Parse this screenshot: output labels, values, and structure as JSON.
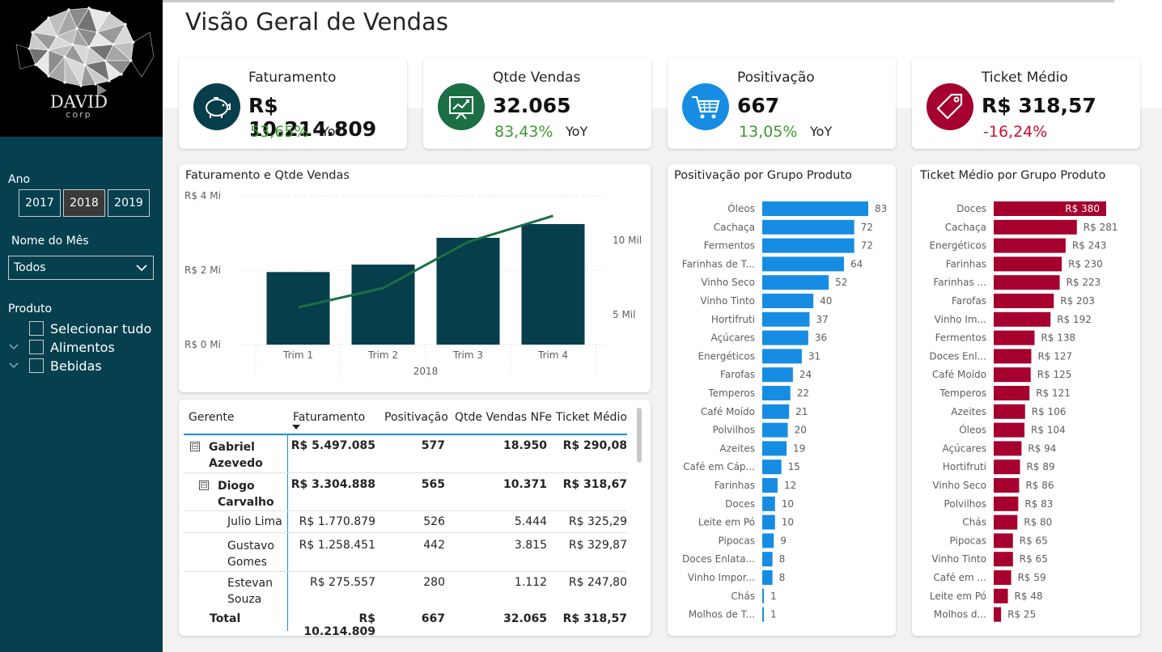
{
  "title": "Visão Geral de Vendas",
  "logo": {
    "main": "DAVID",
    "sub": "corp"
  },
  "filters": {
    "ano_label": "Ano",
    "years": [
      "2017",
      "2018",
      "2019"
    ],
    "selected_year": "2018",
    "mes_label": "Nome do Mês",
    "mes_value": "Todos",
    "produto_label": "Produto",
    "produto_items": [
      "Selecionar tudo",
      "Alimentos",
      "Bebidas"
    ]
  },
  "kpis": [
    {
      "title": "Faturamento",
      "value": "R$ 10.214.809",
      "pct": "53,65%",
      "yoy": "YoY",
      "color": "#063e4b",
      "icon": "piggy-bank-icon"
    },
    {
      "title": "Qtde Vendas",
      "value": "32.065",
      "pct": "83,43%",
      "yoy": "YoY",
      "color": "#1b6e45",
      "icon": "growth-chart-icon"
    },
    {
      "title": "Positivação",
      "value": "667",
      "pct": "13,05%",
      "yoy": "YoY",
      "color": "#168de2",
      "icon": "cart-icon"
    },
    {
      "title": "Ticket Médio",
      "value": "R$ 318,57",
      "pct": "-16,24%",
      "yoy": "",
      "color": "#a5002e",
      "icon": "price-tag-icon"
    }
  ],
  "chart_data": [
    {
      "type": "bar",
      "title": "Faturamento e Qtde Vendas",
      "categories": [
        "Trim 1",
        "Trim 2",
        "Trim 3",
        "Trim 4"
      ],
      "xlabel": "2018",
      "left_axis": {
        "ticks": [
          "R$ 0 Mi",
          "R$ 2 Mi",
          "R$ 4 Mi"
        ],
        "range": [
          0,
          4000000
        ]
      },
      "right_axis": {
        "ticks": [
          "5 Mil",
          "10 Mil"
        ],
        "range": [
          3000,
          13000
        ]
      },
      "series": [
        {
          "type": "bar",
          "values": [
            1950000,
            2150000,
            2870000,
            3240000
          ],
          "color": "#063e4b"
        },
        {
          "type": "line",
          "values": [
            5500,
            6800,
            9900,
            11650
          ],
          "color": "#1b6e45"
        }
      ],
      "grid": true
    },
    {
      "type": "bar",
      "orientation": "horizontal",
      "title": "Positivação por Grupo Produto",
      "color": "#168de2",
      "categories": [
        "Óleos",
        "Cachaça",
        "Fermentos",
        "Farinhas de T...",
        "Vinho Seco",
        "Vinho Tinto",
        "Hortifruti",
        "Açúcares",
        "Energéticos",
        "Farofas",
        "Temperos",
        "Café Moído",
        "Polvilhos",
        "Azeites",
        "Café em Cáp...",
        "Farinhas",
        "Doces",
        "Leite em Pó",
        "Pipocas",
        "Doces Enlata...",
        "Vinho Impor...",
        "Chás",
        "Molhos de T..."
      ],
      "values": [
        83,
        72,
        72,
        64,
        52,
        40,
        37,
        36,
        31,
        24,
        22,
        21,
        20,
        19,
        15,
        12,
        10,
        10,
        9,
        8,
        8,
        1,
        1
      ],
      "labels": [
        "83",
        "72",
        "72",
        "64",
        "52",
        "40",
        "37",
        "36",
        "31",
        "24",
        "22",
        "21",
        "20",
        "19",
        "15",
        "12",
        "10",
        "10",
        "9",
        "8",
        "8",
        "1",
        "1"
      ]
    },
    {
      "type": "bar",
      "orientation": "horizontal",
      "title": "Ticket Médio por Grupo Produto",
      "color": "#a5002e",
      "categories": [
        "Doces",
        "Cachaça",
        "Energéticos",
        "Farinhas",
        "Farinhas ...",
        "Farofas",
        "Vinho Im...",
        "Fermentos",
        "Doces Enl...",
        "Café Moído",
        "Temperos",
        "Azeites",
        "Óleos",
        "Açúcares",
        "Hortifruti",
        "Vinho Seco",
        "Polvilhos",
        "Chás",
        "Pipocas",
        "Vinho Tinto",
        "Café em ...",
        "Leite em Pó",
        "Molhos d..."
      ],
      "values": [
        380,
        281,
        243,
        230,
        223,
        203,
        192,
        138,
        127,
        125,
        121,
        106,
        104,
        94,
        89,
        86,
        83,
        80,
        65,
        65,
        59,
        48,
        25
      ],
      "labels": [
        "R$ 380",
        "R$ 281",
        "R$ 243",
        "R$ 230",
        "R$ 223",
        "R$ 203",
        "R$ 192",
        "R$ 138",
        "R$ 127",
        "R$ 125",
        "R$ 121",
        "R$ 106",
        "R$ 104",
        "R$ 94",
        "R$ 89",
        "R$ 86",
        "R$ 83",
        "R$ 80",
        "R$ 65",
        "R$ 65",
        "R$ 59",
        "R$ 48",
        "R$ 25"
      ]
    }
  ],
  "table": {
    "headers": [
      "Gerente",
      "Faturamento",
      "Positivação",
      "Qtde Vendas NFe",
      "Ticket Médio"
    ],
    "rows": [
      {
        "name": "Gabriel Azevedo",
        "level": 0,
        "bold": true,
        "expand": "⊟",
        "fat": "R$ 5.497.085",
        "pos": "577",
        "qtde": "18.950",
        "ticket": "R$ 290,08"
      },
      {
        "name": "Diogo Carvalho",
        "level": 1,
        "bold": true,
        "expand": "⊟",
        "fat": "R$ 3.304.888",
        "pos": "565",
        "qtde": "10.371",
        "ticket": "R$ 318,67"
      },
      {
        "name": "Julio Lima",
        "level": 2,
        "bold": false,
        "expand": "",
        "fat": "R$ 1.770.879",
        "pos": "526",
        "qtde": "5.444",
        "ticket": "R$ 325,29"
      },
      {
        "name": "Gustavo Gomes",
        "level": 2,
        "bold": false,
        "expand": "",
        "fat": "R$ 1.258.451",
        "pos": "442",
        "qtde": "3.815",
        "ticket": "R$ 329,87"
      },
      {
        "name": "Estevan Souza",
        "level": 2,
        "bold": false,
        "expand": "",
        "fat": "R$ 275.557",
        "pos": "280",
        "qtde": "1.112",
        "ticket": "R$ 247,80"
      }
    ],
    "total": {
      "name": "Total",
      "fat": "R$ 10.214.809",
      "pos": "667",
      "qtde": "32.065",
      "ticket": "R$ 318,57"
    }
  }
}
